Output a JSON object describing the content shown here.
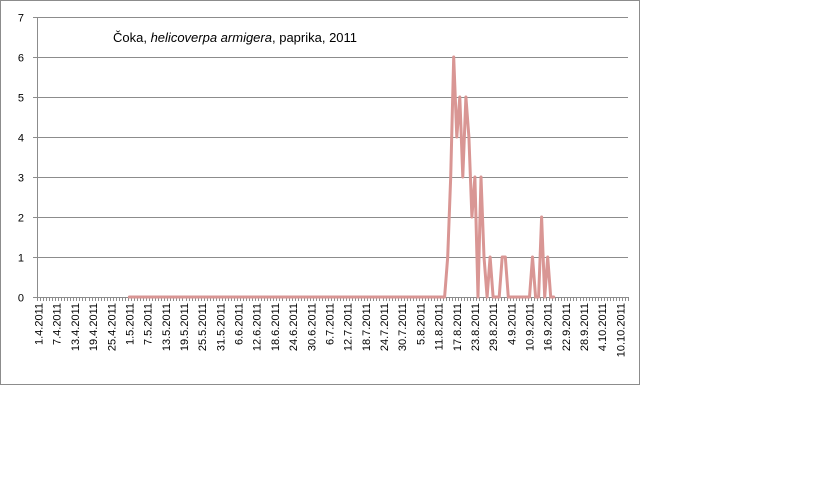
{
  "chart_data": {
    "type": "line",
    "title_parts": [
      {
        "text": "Čoka, ",
        "italic": false
      },
      {
        "text": "helicoverpa armigera",
        "italic": true
      },
      {
        "text": ", paprika, 2011",
        "italic": false
      }
    ],
    "xlabel": "",
    "ylabel": "",
    "ylim": [
      0,
      7
    ],
    "yticks": [
      0,
      1,
      2,
      3,
      4,
      5,
      6,
      7
    ],
    "grid": "horizontal",
    "legend": "none",
    "series_color": "#d99694",
    "x_start": "1.4.2011",
    "x_end": "13.10.2011",
    "x_tick_labels": [
      "1.4.2011",
      "7.4.2011",
      "13.4.2011",
      "19.4.2011",
      "25.4.2011",
      "1.5.2011",
      "7.5.2011",
      "13.5.2011",
      "19.5.2011",
      "25.5.2011",
      "31.5.2011",
      "6.6.2011",
      "12.6.2011",
      "18.6.2011",
      "24.6.2011",
      "30.6.2011",
      "6.7.2011",
      "12.7.2011",
      "18.7.2011",
      "24.7.2011",
      "30.7.2011",
      "5.8.2011",
      "11.8.2011",
      "17.8.2011",
      "23.8.2011",
      "29.8.2011",
      "4.9.2011",
      "10.9.2011",
      "16.9.2011",
      "22.9.2011",
      "28.9.2011",
      "4.10.2011",
      "10.10.2011"
    ],
    "series": [
      {
        "x": [
          "1.5.2011",
          "1.8.2011",
          "13.8.2011",
          "14.8.2011",
          "15.8.2011",
          "16.8.2011",
          "17.8.2011",
          "18.8.2011",
          "19.8.2011",
          "20.8.2011",
          "21.8.2011",
          "22.8.2011",
          "23.8.2011",
          "24.8.2011",
          "25.8.2011",
          "26.8.2011",
          "27.8.2011",
          "28.8.2011",
          "29.8.2011",
          "30.8.2011",
          "31.8.2011",
          "1.9.2011",
          "2.9.2011",
          "3.9.2011",
          "4.9.2011",
          "5.9.2011",
          "6.9.2011",
          "7.9.2011",
          "8.9.2011",
          "9.9.2011",
          "10.9.2011",
          "11.9.2011",
          "12.9.2011",
          "13.9.2011",
          "14.9.2011",
          "15.9.2011",
          "16.9.2011",
          "17.9.2011",
          "18.9.2011"
        ],
        "values": [
          0,
          0,
          0,
          1,
          3,
          6,
          4,
          5,
          3,
          5,
          4,
          2,
          3,
          0,
          3,
          1,
          0,
          1,
          0,
          0,
          0,
          1,
          1,
          0,
          0,
          0,
          0,
          0,
          0,
          0,
          0,
          1,
          0,
          0,
          2,
          0,
          1,
          0,
          0
        ]
      }
    ]
  }
}
